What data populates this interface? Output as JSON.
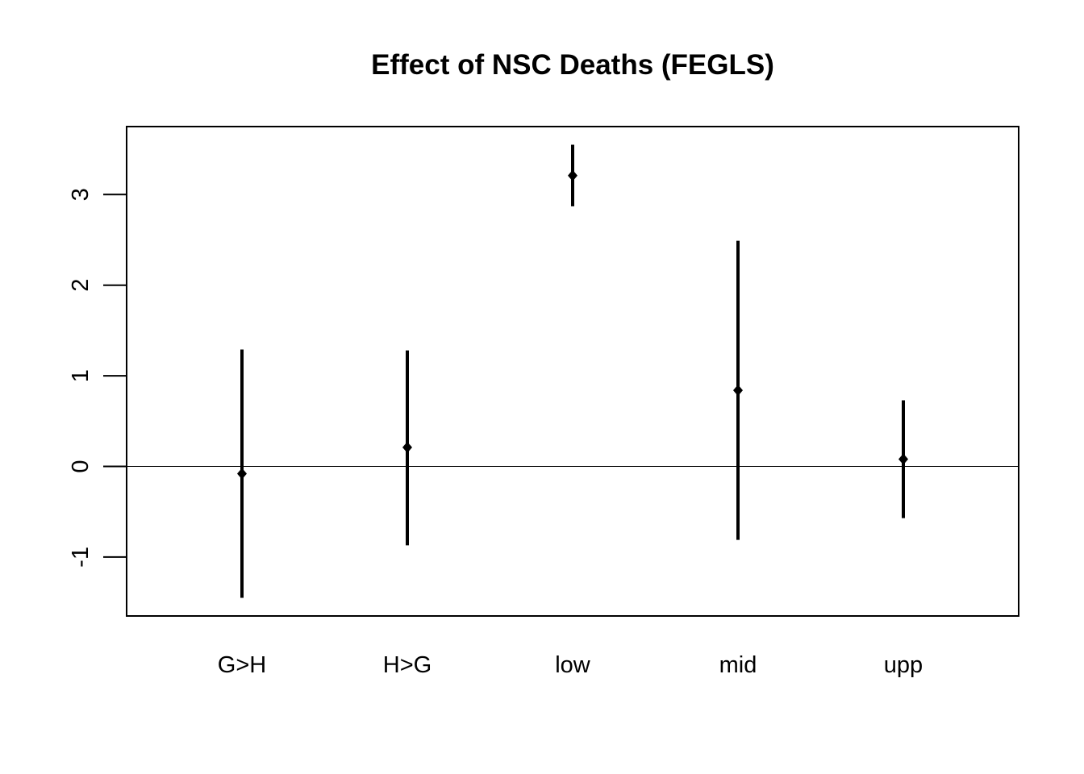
{
  "chart_data": {
    "type": "scatter",
    "title": "Effect of NSC Deaths (FEGLS)",
    "xlabel": "",
    "ylabel": "",
    "categories": [
      "G>H",
      "H>G",
      "low",
      "mid",
      "upp"
    ],
    "series": [
      {
        "estimate": [
          -0.08,
          0.21,
          3.21,
          0.84,
          0.08
        ],
        "lower": [
          -1.45,
          -0.87,
          2.87,
          -0.81,
          -0.57
        ],
        "upper": [
          1.29,
          1.28,
          3.55,
          2.49,
          0.73
        ]
      }
    ],
    "ylim": [
      -1.65,
      3.75
    ],
    "yticks": [
      -1,
      0,
      1,
      2,
      3
    ],
    "reference_line": 0,
    "grid": false,
    "legend": "none",
    "colors": {
      "marks": "#000000",
      "axis": "#000000",
      "background": "#ffffff"
    }
  }
}
